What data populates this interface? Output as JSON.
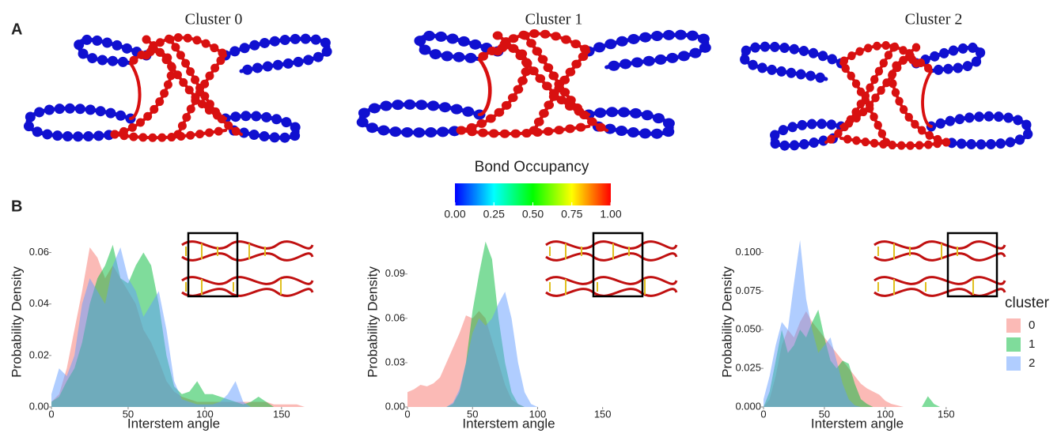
{
  "panel_labels": [
    "A",
    "B"
  ],
  "network_titles": [
    "Cluster 0",
    "Cluster 1",
    "Cluster 2"
  ],
  "colorbar": {
    "title": "Bond Occupancy",
    "lim": [
      0,
      1
    ],
    "colors": [
      "#0000ff",
      "#00ffff",
      "#00ff00",
      "#ffff00",
      "#ff0000"
    ],
    "ticks": [
      {
        "value": 0,
        "label": "0.00"
      },
      {
        "value": 0.25,
        "label": "0.25"
      },
      {
        "value": 0.5,
        "label": "0.50"
      },
      {
        "value": 0.75,
        "label": "0.75"
      },
      {
        "value": 1,
        "label": "1.00"
      }
    ]
  },
  "chart_data": [
    {
      "type": "area",
      "xlabel": "Interstem angle",
      "ylabel": "Probability Density",
      "xlim": [
        0,
        180
      ],
      "xticks": [
        0,
        50,
        100,
        150
      ],
      "ylim": [
        0,
        0.066
      ],
      "yticks": [
        {
          "value": 0,
          "label": "0.00"
        },
        0.02,
        0.04,
        0.06
      ],
      "x": [
        0,
        5,
        10,
        15,
        20,
        25,
        30,
        35,
        40,
        45,
        50,
        55,
        60,
        65,
        70,
        75,
        80,
        85,
        90,
        95,
        100,
        105,
        110,
        115,
        120,
        125,
        130,
        135,
        140,
        145,
        150,
        155,
        160,
        165,
        170
      ],
      "series": [
        {
          "color": "#f8766d",
          "values": [
            0.002,
            0.005,
            0.015,
            0.03,
            0.045,
            0.062,
            0.058,
            0.05,
            0.055,
            0.05,
            0.045,
            0.04,
            0.03,
            0.025,
            0.018,
            0.01,
            0.006,
            0.004,
            0.003,
            0.002,
            0.002,
            0.002,
            0.002,
            0.002,
            0.002,
            0.002,
            0.002,
            0.002,
            0.002,
            0.001,
            0.001,
            0.001,
            0.001,
            0,
            0
          ]
        },
        {
          "color": "#00ba38",
          "values": [
            0.002,
            0.004,
            0.01,
            0.015,
            0.025,
            0.04,
            0.05,
            0.055,
            0.063,
            0.05,
            0.048,
            0.055,
            0.06,
            0.055,
            0.04,
            0.02,
            0.008,
            0.005,
            0.006,
            0.01,
            0.005,
            0.005,
            0.004,
            0.003,
            0.002,
            0.001,
            0.002,
            0.004,
            0.002,
            0,
            0,
            0,
            0,
            0,
            0
          ]
        },
        {
          "color": "#619cff",
          "values": [
            0.005,
            0.015,
            0.012,
            0.02,
            0.04,
            0.05,
            0.045,
            0.04,
            0.055,
            0.062,
            0.05,
            0.045,
            0.035,
            0.04,
            0.045,
            0.03,
            0.01,
            0.003,
            0.002,
            0.001,
            0.001,
            0.001,
            0.002,
            0.005,
            0.01,
            0.002,
            0,
            0,
            0,
            0,
            0,
            0,
            0,
            0,
            0
          ]
        }
      ]
    },
    {
      "type": "area",
      "xlabel": "Interstem angle",
      "ylabel": "Probability Density",
      "xlim": [
        0,
        180
      ],
      "xticks": [
        0,
        50,
        100,
        150
      ],
      "ylim": [
        0,
        0.115
      ],
      "yticks": [
        {
          "value": 0,
          "label": "0.00"
        },
        0.03,
        0.06,
        0.09
      ],
      "x": [
        0,
        5,
        10,
        15,
        20,
        25,
        30,
        35,
        40,
        45,
        50,
        55,
        60,
        65,
        70,
        75,
        80,
        85,
        90,
        95,
        100,
        105,
        110,
        115,
        120,
        125,
        130,
        135,
        140,
        145,
        150,
        155,
        160,
        165,
        170
      ],
      "series": [
        {
          "color": "#f8766d",
          "values": [
            0.01,
            0.012,
            0.015,
            0.014,
            0.016,
            0.02,
            0.03,
            0.04,
            0.05,
            0.062,
            0.06,
            0.065,
            0.06,
            0.045,
            0.03,
            0.015,
            0.005,
            0.002,
            0,
            0,
            0,
            0,
            0,
            0,
            0,
            0,
            0,
            0,
            0,
            0,
            0,
            0,
            0,
            0,
            0
          ]
        },
        {
          "color": "#00ba38",
          "values": [
            0,
            0,
            0,
            0,
            0,
            0,
            0,
            0.002,
            0.01,
            0.03,
            0.065,
            0.09,
            0.112,
            0.1,
            0.06,
            0.03,
            0.01,
            0.002,
            0,
            0,
            0,
            0,
            0,
            0,
            0,
            0,
            0,
            0,
            0,
            0,
            0,
            0,
            0,
            0,
            0
          ]
        },
        {
          "color": "#619cff",
          "values": [
            0,
            0,
            0,
            0,
            0,
            0,
            0,
            0.003,
            0.012,
            0.03,
            0.05,
            0.06,
            0.055,
            0.06,
            0.07,
            0.078,
            0.06,
            0.03,
            0.01,
            0.002,
            0,
            0,
            0,
            0,
            0,
            0,
            0,
            0,
            0,
            0,
            0,
            0,
            0,
            0,
            0
          ]
        }
      ]
    },
    {
      "type": "area",
      "xlabel": "Interstem angle",
      "ylabel": "Probability Density",
      "xlim": [
        0,
        180
      ],
      "xticks": [
        0,
        50,
        100,
        150
      ],
      "ylim": [
        0,
        0.11
      ],
      "yticks": [
        {
          "value": 0,
          "label": "0.000"
        },
        0.025,
        {
          "value": 0.05,
          "label": "0.050"
        },
        0.075,
        {
          "value": 0.1,
          "label": "0.100"
        }
      ],
      "legend_title": "cluster",
      "x": [
        0,
        5,
        10,
        15,
        20,
        25,
        30,
        35,
        40,
        45,
        50,
        55,
        60,
        65,
        70,
        75,
        80,
        85,
        90,
        95,
        100,
        105,
        110,
        115,
        120,
        125,
        130,
        135,
        140,
        145,
        150,
        155,
        160,
        165,
        170
      ],
      "series": [
        {
          "name": "0",
          "color": "#f8766d",
          "values": [
            0,
            0.005,
            0.02,
            0.04,
            0.05,
            0.045,
            0.055,
            0.062,
            0.055,
            0.05,
            0.045,
            0.04,
            0.035,
            0.03,
            0.025,
            0.02,
            0.015,
            0.012,
            0.01,
            0.008,
            0.004,
            0.002,
            0.001,
            0,
            0,
            0,
            0,
            0,
            0,
            0,
            0,
            0,
            0,
            0,
            0
          ]
        },
        {
          "name": "1",
          "color": "#00ba38",
          "values": [
            0,
            0.01,
            0.03,
            0.05,
            0.035,
            0.04,
            0.05,
            0.045,
            0.055,
            0.063,
            0.045,
            0.03,
            0.025,
            0.03,
            0.028,
            0.015,
            0.005,
            0.002,
            0,
            0,
            0,
            0,
            0,
            0,
            0,
            0,
            0,
            0.007,
            0.002,
            0,
            0,
            0,
            0,
            0,
            0
          ]
        },
        {
          "name": "2",
          "color": "#619cff",
          "values": [
            0.005,
            0.02,
            0.04,
            0.055,
            0.05,
            0.08,
            0.108,
            0.07,
            0.05,
            0.035,
            0.04,
            0.045,
            0.03,
            0.015,
            0.005,
            0.001,
            0,
            0,
            0,
            0,
            0,
            0,
            0,
            0,
            0,
            0,
            0,
            0,
            0,
            0,
            0,
            0,
            0,
            0,
            0
          ]
        }
      ]
    }
  ]
}
